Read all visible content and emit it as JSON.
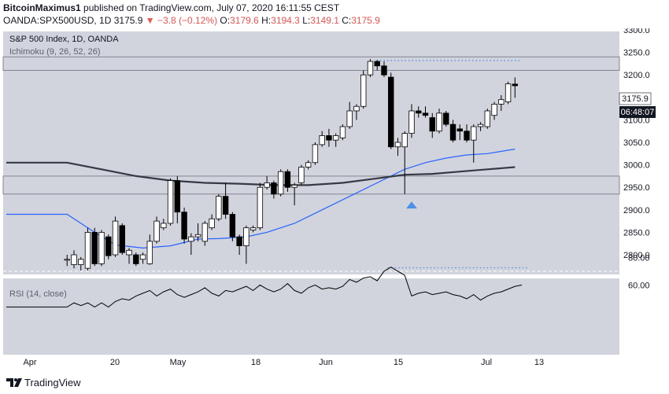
{
  "header": {
    "author": "BitcoinMaximus1",
    "published_text": "published on TradingView.com, July 07, 2020 16:11:55 CEST",
    "symbol": "OANDA:SPX500USD, 1D",
    "last": "3175.9",
    "change": "−3.8 (−0.12%)",
    "o_label": "O:",
    "o_value": "3179.6",
    "h_label": "H:",
    "h_value": "3194.3",
    "l_label": "L:",
    "l_value": "3149.1",
    "c_label": "C:",
    "c_value": "3175.9"
  },
  "legend": {
    "title": "S&P 500 Index, 1D, OANDA",
    "indicator": "Ichimoku (9, 26, 52, 26)",
    "rsi": "RSI (14, close)"
  },
  "price_axis": {
    "labels": [
      "3300.0",
      "3250.0",
      "3200.0",
      "3150.0",
      "3100.0",
      "3050.0",
      "3000.0",
      "2950.0",
      "2900.0",
      "2850.0",
      "2800.0"
    ],
    "last_price_label": "3175.9",
    "countdown_label": "06:48:07"
  },
  "rsi_axis": {
    "labels": [
      "80.00",
      "60.00"
    ]
  },
  "time_axis": {
    "labels": [
      "Apr",
      "20",
      "May",
      "18",
      "Jun",
      "15",
      "Jul",
      "13"
    ]
  },
  "footer": {
    "brand": "TradingView"
  },
  "colors": {
    "background": "#d1d4dc",
    "bull": "#ffffff",
    "bear": "#000000",
    "blue_line": "#2962ff",
    "ma_line": "#363a45",
    "arrow": "#4e8fe8",
    "dotted": "#4e8fe8"
  },
  "chart_data": [
    {
      "type": "candlestick",
      "title": "S&P 500 Index, 1D, OANDA",
      "ylim": [
        2770,
        3330
      ],
      "horizontal_zones": [
        {
          "from": 3210,
          "to": 3240
        },
        {
          "from": 2935,
          "to": 2975
        }
      ],
      "resistance_dotted": 3232,
      "candles": [
        {
          "o": 2788,
          "h": 2800,
          "l": 2775,
          "c": 2790
        },
        {
          "o": 2778,
          "h": 2810,
          "l": 2770,
          "c": 2800
        },
        {
          "o": 2778,
          "h": 2795,
          "l": 2765,
          "c": 2790
        },
        {
          "o": 2770,
          "h": 2860,
          "l": 2765,
          "c": 2850
        },
        {
          "o": 2850,
          "h": 2860,
          "l": 2775,
          "c": 2780
        },
        {
          "o": 2780,
          "h": 2855,
          "l": 2775,
          "c": 2850
        },
        {
          "o": 2840,
          "h": 2845,
          "l": 2790,
          "c": 2798
        },
        {
          "o": 2800,
          "h": 2885,
          "l": 2795,
          "c": 2875
        },
        {
          "o": 2865,
          "h": 2870,
          "l": 2800,
          "c": 2805
        },
        {
          "o": 2800,
          "h": 2815,
          "l": 2780,
          "c": 2810
        },
        {
          "o": 2800,
          "h": 2805,
          "l": 2775,
          "c": 2780
        },
        {
          "o": 2790,
          "h": 2805,
          "l": 2780,
          "c": 2800
        },
        {
          "o": 2780,
          "h": 2845,
          "l": 2778,
          "c": 2830
        },
        {
          "o": 2830,
          "h": 2885,
          "l": 2825,
          "c": 2875
        },
        {
          "o": 2860,
          "h": 2880,
          "l": 2855,
          "c": 2870
        },
        {
          "o": 2870,
          "h": 2970,
          "l": 2865,
          "c": 2965
        },
        {
          "o": 2965,
          "h": 2975,
          "l": 2870,
          "c": 2895
        },
        {
          "o": 2895,
          "h": 2905,
          "l": 2825,
          "c": 2835
        },
        {
          "o": 2830,
          "h": 2848,
          "l": 2800,
          "c": 2840
        },
        {
          "o": 2840,
          "h": 2870,
          "l": 2830,
          "c": 2845
        },
        {
          "o": 2830,
          "h": 2875,
          "l": 2820,
          "c": 2870
        },
        {
          "o": 2860,
          "h": 2890,
          "l": 2855,
          "c": 2880
        },
        {
          "o": 2880,
          "h": 2935,
          "l": 2875,
          "c": 2930
        },
        {
          "o": 2930,
          "h": 2960,
          "l": 2880,
          "c": 2890
        },
        {
          "o": 2890,
          "h": 2895,
          "l": 2830,
          "c": 2840
        },
        {
          "o": 2840,
          "h": 2845,
          "l": 2800,
          "c": 2820
        },
        {
          "o": 2820,
          "h": 2865,
          "l": 2780,
          "c": 2860
        },
        {
          "o": 2855,
          "h": 2865,
          "l": 2850,
          "c": 2860
        },
        {
          "o": 2860,
          "h": 2960,
          "l": 2855,
          "c": 2950
        },
        {
          "o": 2950,
          "h": 2975,
          "l": 2945,
          "c": 2960
        },
        {
          "o": 2960,
          "h": 2965,
          "l": 2925,
          "c": 2935
        },
        {
          "o": 2935,
          "h": 2990,
          "l": 2930,
          "c": 2985
        },
        {
          "o": 2985,
          "h": 2990,
          "l": 2940,
          "c": 2950
        },
        {
          "o": 2950,
          "h": 2960,
          "l": 2910,
          "c": 2955
        },
        {
          "o": 2960,
          "h": 3000,
          "l": 2955,
          "c": 2995
        },
        {
          "o": 2995,
          "h": 3010,
          "l": 2990,
          "c": 3005
        },
        {
          "o": 3005,
          "h": 3050,
          "l": 3000,
          "c": 3045
        },
        {
          "o": 3045,
          "h": 3075,
          "l": 3040,
          "c": 3065
        },
        {
          "o": 3065,
          "h": 3080,
          "l": 3040,
          "c": 3055
        },
        {
          "o": 3055,
          "h": 3070,
          "l": 3040,
          "c": 3065
        },
        {
          "o": 3060,
          "h": 3090,
          "l": 3055,
          "c": 3085
        },
        {
          "o": 3085,
          "h": 3140,
          "l": 3080,
          "c": 3120
        },
        {
          "o": 3120,
          "h": 3135,
          "l": 3100,
          "c": 3130
        },
        {
          "o": 3130,
          "h": 3210,
          "l": 3125,
          "c": 3200
        },
        {
          "o": 3200,
          "h": 3235,
          "l": 3195,
          "c": 3230
        },
        {
          "o": 3230,
          "h": 3233,
          "l": 3210,
          "c": 3220
        },
        {
          "o": 3220,
          "h": 3230,
          "l": 3195,
          "c": 3200
        },
        {
          "o": 3195,
          "h": 3205,
          "l": 3035,
          "c": 3040
        },
        {
          "o": 3040,
          "h": 3060,
          "l": 3020,
          "c": 3050
        },
        {
          "o": 3040,
          "h": 3075,
          "l": 2935,
          "c": 3070
        },
        {
          "o": 3070,
          "h": 3135,
          "l": 3060,
          "c": 3120
        },
        {
          "o": 3120,
          "h": 3130,
          "l": 3105,
          "c": 3115
        },
        {
          "o": 3115,
          "h": 3130,
          "l": 3105,
          "c": 3110
        },
        {
          "o": 3105,
          "h": 3115,
          "l": 3060,
          "c": 3075
        },
        {
          "o": 3075,
          "h": 3125,
          "l": 3070,
          "c": 3115
        },
        {
          "o": 3115,
          "h": 3120,
          "l": 3085,
          "c": 3090
        },
        {
          "o": 3090,
          "h": 3100,
          "l": 3050,
          "c": 3055
        },
        {
          "o": 3080,
          "h": 3090,
          "l": 3055,
          "c": 3075
        },
        {
          "o": 3075,
          "h": 3090,
          "l": 3050,
          "c": 3055
        },
        {
          "o": 3055,
          "h": 3090,
          "l": 3005,
          "c": 3085
        },
        {
          "o": 3085,
          "h": 3095,
          "l": 3075,
          "c": 3090
        },
        {
          "o": 3085,
          "h": 3125,
          "l": 3080,
          "c": 3120
        },
        {
          "o": 3110,
          "h": 3140,
          "l": 3100,
          "c": 3135
        },
        {
          "o": 3135,
          "h": 3155,
          "l": 3120,
          "c": 3145
        },
        {
          "o": 3140,
          "h": 3185,
          "l": 3135,
          "c": 3180
        },
        {
          "o": 3179.6,
          "h": 3194.3,
          "l": 3149.1,
          "c": 3175.9
        }
      ],
      "blue_line": [
        {
          "i": 0,
          "v": 2890
        },
        {
          "i": 4,
          "v": 2850
        },
        {
          "i": 7,
          "v": 2822
        },
        {
          "i": 11,
          "v": 2815
        },
        {
          "i": 15,
          "v": 2820
        },
        {
          "i": 19,
          "v": 2835
        },
        {
          "i": 22,
          "v": 2836
        },
        {
          "i": 26,
          "v": 2840
        },
        {
          "i": 29,
          "v": 2850
        },
        {
          "i": 33,
          "v": 2870
        },
        {
          "i": 37,
          "v": 2900
        },
        {
          "i": 41,
          "v": 2930
        },
        {
          "i": 45,
          "v": 2960
        },
        {
          "i": 49,
          "v": 2990
        },
        {
          "i": 52,
          "v": 3005
        },
        {
          "i": 55,
          "v": 3015
        },
        {
          "i": 58,
          "v": 3022
        },
        {
          "i": 61,
          "v": 3025
        },
        {
          "i": 65,
          "v": 3035
        }
      ],
      "ma_line": [
        {
          "i": 0,
          "v": 3005
        },
        {
          "i": 5,
          "v": 2990
        },
        {
          "i": 10,
          "v": 2975
        },
        {
          "i": 15,
          "v": 2965
        },
        {
          "i": 20,
          "v": 2960
        },
        {
          "i": 25,
          "v": 2958
        },
        {
          "i": 30,
          "v": 2955
        },
        {
          "i": 35,
          "v": 2955
        },
        {
          "i": 40,
          "v": 2960
        },
        {
          "i": 45,
          "v": 2970
        },
        {
          "i": 49,
          "v": 2978
        },
        {
          "i": 53,
          "v": 2980
        },
        {
          "i": 57,
          "v": 2985
        },
        {
          "i": 61,
          "v": 2990
        },
        {
          "i": 65,
          "v": 2995
        }
      ],
      "arrow_marker": {
        "i": 50,
        "below_value": 2910
      }
    },
    {
      "type": "line",
      "title": "RSI (14, close)",
      "ylim": [
        40,
        80
      ],
      "levels": [
        70
      ],
      "values": [
        44,
        47,
        45,
        47,
        44,
        47,
        44,
        48,
        50,
        49,
        52,
        54,
        56,
        52,
        55,
        57,
        53,
        51,
        53,
        55,
        58,
        54,
        52,
        56,
        55,
        57,
        59,
        56,
        60,
        57,
        55,
        57,
        61,
        56,
        54,
        58,
        60,
        57,
        58,
        57,
        59,
        64,
        62,
        65,
        66,
        63,
        70,
        73,
        70,
        67,
        52,
        54,
        55,
        53,
        54,
        55,
        53,
        52,
        50,
        53,
        49,
        52,
        54,
        55,
        57,
        59,
        60
      ]
    }
  ]
}
